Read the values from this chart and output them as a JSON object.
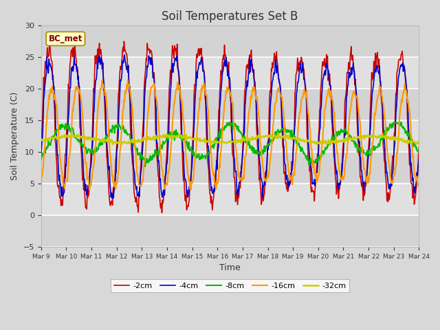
{
  "title": "Soil Temperatures Set B",
  "xlabel": "Time",
  "ylabel": "Soil Temperature (C)",
  "ylim": [
    -5,
    30
  ],
  "annotation": "BC_met",
  "x_tick_labels": [
    "Mar 9",
    "Mar 10",
    "Mar 11",
    "Mar 12",
    "Mar 13",
    "Mar 14",
    "Mar 15",
    "Mar 16",
    "Mar 17",
    "Mar 18",
    "Mar 19",
    "Mar 20",
    "Mar 21",
    "Mar 22",
    "Mar 23",
    "Mar 24"
  ],
  "series_labels": [
    "-2cm",
    "-4cm",
    "-8cm",
    "-16cm",
    "-32cm"
  ],
  "series_colors": [
    "#cc0000",
    "#0000cc",
    "#00bb00",
    "#ff9900",
    "#cccc00"
  ],
  "series_linewidths": [
    1.2,
    1.2,
    1.5,
    1.5,
    1.8
  ],
  "bg_color": "#d8d8d8",
  "plot_bg_color": "#e0e0e0",
  "grid_color": "#ffffff",
  "n_points": 720,
  "yticks": [
    -5,
    0,
    5,
    10,
    15,
    20,
    25,
    30
  ]
}
